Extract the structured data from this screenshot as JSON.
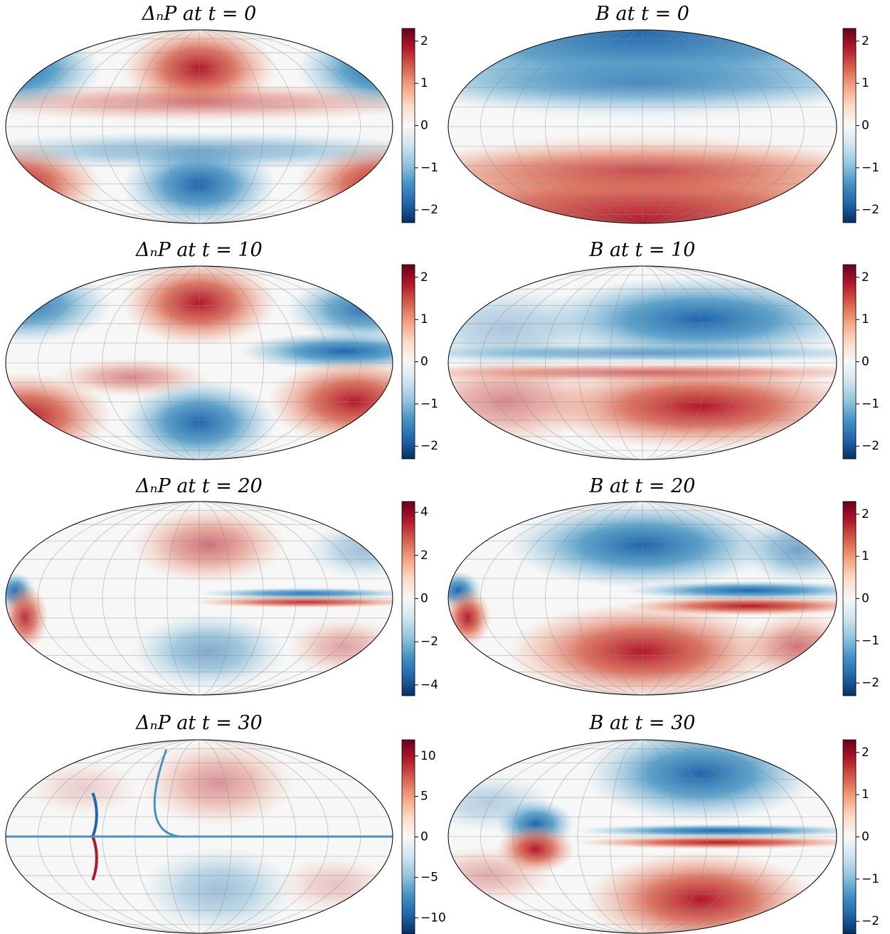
{
  "chart_data": [
    {
      "type": "map",
      "title": "ΔₙP at t = 0",
      "clim": [
        -2.3,
        2.3
      ],
      "cticks": [
        {
          "value": -2,
          "label": "−2"
        },
        {
          "value": -1,
          "label": "−1"
        },
        0,
        1,
        2
      ],
      "cmap": [
        "#67001f",
        "#b2182b",
        "#d6604d",
        "#f4a582",
        "#fddbc7",
        "#f7f7f7",
        "#d1e5f0",
        "#92c5de",
        "#4393c3",
        "#2166ac",
        "#053061"
      ]
    },
    {
      "type": "map",
      "title": "B at t = 0",
      "clim": [
        -2.3,
        2.3
      ],
      "cticks": [
        {
          "value": -2,
          "label": "−2"
        },
        {
          "value": -1,
          "label": "−1"
        },
        0,
        1,
        2
      ],
      "cmap": [
        "#67001f",
        "#b2182b",
        "#d6604d",
        "#f4a582",
        "#fddbc7",
        "#f7f7f7",
        "#d1e5f0",
        "#92c5de",
        "#4393c3",
        "#2166ac",
        "#053061"
      ]
    },
    {
      "type": "map",
      "title": "ΔₙP at t = 10",
      "clim": [
        -2.3,
        2.3
      ],
      "cticks": [
        {
          "value": -2,
          "label": "−2"
        },
        {
          "value": -1,
          "label": "−1"
        },
        0,
        1,
        2
      ],
      "cmap": [
        "#67001f",
        "#b2182b",
        "#d6604d",
        "#f4a582",
        "#fddbc7",
        "#f7f7f7",
        "#d1e5f0",
        "#92c5de",
        "#4393c3",
        "#2166ac",
        "#053061"
      ]
    },
    {
      "type": "map",
      "title": "B at t = 10",
      "clim": [
        -2.3,
        2.3
      ],
      "cticks": [
        {
          "value": -2,
          "label": "−2"
        },
        {
          "value": -1,
          "label": "−1"
        },
        0,
        1,
        2
      ],
      "cmap": [
        "#67001f",
        "#b2182b",
        "#d6604d",
        "#f4a582",
        "#fddbc7",
        "#f7f7f7",
        "#d1e5f0",
        "#92c5de",
        "#4393c3",
        "#2166ac",
        "#053061"
      ]
    },
    {
      "type": "map",
      "title": "ΔₙP at t = 20",
      "clim": [
        -4.5,
        4.5
      ],
      "cticks": [
        {
          "value": -4,
          "label": "−4"
        },
        {
          "value": -2,
          "label": "−2"
        },
        0,
        2,
        4
      ],
      "cmap": [
        "#67001f",
        "#b2182b",
        "#d6604d",
        "#f4a582",
        "#fddbc7",
        "#f7f7f7",
        "#d1e5f0",
        "#92c5de",
        "#4393c3",
        "#2166ac",
        "#053061"
      ]
    },
    {
      "type": "map",
      "title": "B at t = 20",
      "clim": [
        -2.3,
        2.3
      ],
      "cticks": [
        {
          "value": -2,
          "label": "−2"
        },
        {
          "value": -1,
          "label": "−1"
        },
        0,
        1,
        2
      ],
      "cmap": [
        "#67001f",
        "#b2182b",
        "#d6604d",
        "#f4a582",
        "#fddbc7",
        "#f7f7f7",
        "#d1e5f0",
        "#92c5de",
        "#4393c3",
        "#2166ac",
        "#053061"
      ]
    },
    {
      "type": "map",
      "title": "ΔₙP at t = 30",
      "clim": [
        -12,
        12
      ],
      "cticks": [
        {
          "value": -10,
          "label": "−10"
        },
        {
          "value": -5,
          "label": "−5"
        },
        0,
        5,
        10
      ],
      "cmap": [
        "#67001f",
        "#b2182b",
        "#d6604d",
        "#f4a582",
        "#fddbc7",
        "#f7f7f7",
        "#d1e5f0",
        "#92c5de",
        "#4393c3",
        "#2166ac",
        "#053061"
      ]
    },
    {
      "type": "map",
      "title": "B at t = 30",
      "clim": [
        -2.3,
        2.3
      ],
      "cticks": [
        {
          "value": -2,
          "label": "−2"
        },
        {
          "value": -1,
          "label": "−1"
        },
        0,
        1,
        2
      ],
      "cmap": [
        "#67001f",
        "#b2182b",
        "#d6604d",
        "#f4a582",
        "#fddbc7",
        "#f7f7f7",
        "#d1e5f0",
        "#92c5de",
        "#4393c3",
        "#2166ac",
        "#053061"
      ]
    }
  ]
}
